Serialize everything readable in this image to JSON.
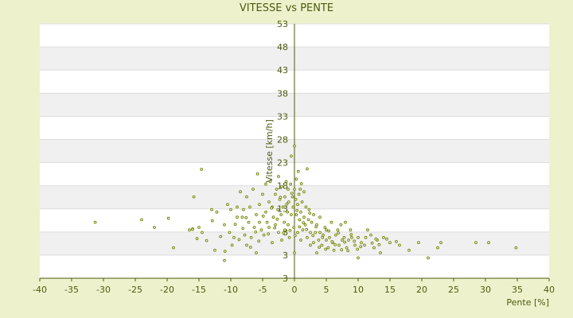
{
  "chart_data": {
    "type": "scatter",
    "title": "VITESSE vs PENTE",
    "xlabel": "Pente [%]",
    "ylabel": "Vitesse [km/h]",
    "xlim": [
      -40,
      40
    ],
    "ylim": [
      3,
      53
    ],
    "x_ticks": [
      "-40",
      "-35",
      "-30",
      "-25",
      "-20",
      "-15",
      "-10",
      "-5",
      "0",
      "5",
      "10",
      "15",
      "20",
      "25",
      "30",
      "35",
      "40"
    ],
    "y_ticks": [
      "3",
      "3",
      "8",
      "13",
      "18",
      "23",
      "28",
      "33",
      "38",
      "43",
      "48",
      "53"
    ],
    "grid": true,
    "marker_color": "#7a8a10",
    "points": [
      [
        -31.3,
        14.0
      ],
      [
        -24.0,
        14.5
      ],
      [
        -22.0,
        13.0
      ],
      [
        -19.8,
        14.8
      ],
      [
        -19.0,
        9.0
      ],
      [
        -16.5,
        12.5
      ],
      [
        -16.0,
        12.7
      ],
      [
        -15.8,
        19.0
      ],
      [
        -15.3,
        10.8
      ],
      [
        -15.0,
        13.0
      ],
      [
        -14.6,
        24.4
      ],
      [
        -14.5,
        12.0
      ],
      [
        -13.0,
        16.5
      ],
      [
        -12.5,
        8.5
      ],
      [
        -12.2,
        16.0
      ],
      [
        -11.0,
        6.5
      ],
      [
        -11.0,
        13.5
      ],
      [
        -10.5,
        17.5
      ],
      [
        -10.2,
        12.0
      ],
      [
        -10.0,
        16.5
      ],
      [
        -9.8,
        9.5
      ],
      [
        -9.5,
        11.0
      ],
      [
        -9.0,
        15.0
      ],
      [
        -9.0,
        17.0
      ],
      [
        -8.5,
        20.0
      ],
      [
        -8.2,
        15.0
      ],
      [
        -8.0,
        16.5
      ],
      [
        -7.8,
        11.5
      ],
      [
        -7.5,
        9.5
      ],
      [
        -7.5,
        19.0
      ],
      [
        -7.2,
        14.0
      ],
      [
        -7.0,
        17.0
      ],
      [
        -6.8,
        11.0
      ],
      [
        -6.5,
        20.5
      ],
      [
        -6.3,
        13.0
      ],
      [
        -6.0,
        8.0
      ],
      [
        -6.0,
        15.5
      ],
      [
        -5.8,
        23.5
      ],
      [
        -5.5,
        14.0
      ],
      [
        -5.5,
        17.5
      ],
      [
        -5.2,
        12.5
      ],
      [
        -5.0,
        19.5
      ],
      [
        -4.8,
        11.5
      ],
      [
        -4.5,
        16.0
      ],
      [
        -4.5,
        21.5
      ],
      [
        -4.3,
        14.0
      ],
      [
        -4.0,
        18.0
      ],
      [
        -4.0,
        13.0
      ],
      [
        -3.8,
        22.0
      ],
      [
        -3.5,
        17.0
      ],
      [
        -3.5,
        10.0
      ],
      [
        -3.3,
        15.0
      ],
      [
        -3.0,
        19.5
      ],
      [
        -3.0,
        13.5
      ],
      [
        -2.8,
        20.5
      ],
      [
        -2.6,
        16.5
      ],
      [
        -2.5,
        23.0
      ],
      [
        -2.5,
        12.0
      ],
      [
        -2.3,
        18.5
      ],
      [
        -2.1,
        15.5
      ],
      [
        -2.0,
        21.0
      ],
      [
        -2.0,
        10.5
      ],
      [
        -1.8,
        17.0
      ],
      [
        -1.6,
        14.0
      ],
      [
        -1.5,
        19.0
      ],
      [
        -1.5,
        12.5
      ],
      [
        -1.3,
        22.0
      ],
      [
        -1.1,
        16.0
      ],
      [
        -1.0,
        20.5
      ],
      [
        -1.0,
        13.5
      ],
      [
        -0.9,
        18.0
      ],
      [
        -0.8,
        11.0
      ],
      [
        -0.6,
        21.5
      ],
      [
        -0.5,
        15.5
      ],
      [
        -0.5,
        27.0
      ],
      [
        -0.3,
        19.0
      ],
      [
        -0.2,
        17.0
      ],
      [
        -0.1,
        13.0
      ],
      [
        0.0,
        20.5
      ],
      [
        0.0,
        29.0
      ],
      [
        0.0,
        8.0
      ],
      [
        0.2,
        18.5
      ],
      [
        0.3,
        22.5
      ],
      [
        0.3,
        15.5
      ],
      [
        0.5,
        17.5
      ],
      [
        0.5,
        12.0
      ],
      [
        0.6,
        24.0
      ],
      [
        0.7,
        19.5
      ],
      [
        0.8,
        14.5
      ],
      [
        0.9,
        20.5
      ],
      [
        1.0,
        16.0
      ],
      [
        1.0,
        10.5
      ],
      [
        1.2,
        18.0
      ],
      [
        1.3,
        12.5
      ],
      [
        1.5,
        15.0
      ],
      [
        1.5,
        20.0
      ],
      [
        1.7,
        13.5
      ],
      [
        1.8,
        17.0
      ],
      [
        2.0,
        24.5
      ],
      [
        2.0,
        11.0
      ],
      [
        2.2,
        14.5
      ],
      [
        2.3,
        16.5
      ],
      [
        2.5,
        9.5
      ],
      [
        2.5,
        12.0
      ],
      [
        2.7,
        14.0
      ],
      [
        3.0,
        10.0
      ],
      [
        3.0,
        15.5
      ],
      [
        3.3,
        12.0
      ],
      [
        3.5,
        8.0
      ],
      [
        3.5,
        13.5
      ],
      [
        3.8,
        10.5
      ],
      [
        4.0,
        12.0
      ],
      [
        4.0,
        15.0
      ],
      [
        4.3,
        9.5
      ],
      [
        4.5,
        11.5
      ],
      [
        4.8,
        13.0
      ],
      [
        5.0,
        10.5
      ],
      [
        5.0,
        12.5
      ],
      [
        5.3,
        9.0
      ],
      [
        5.5,
        11.0
      ],
      [
        5.8,
        14.0
      ],
      [
        6.0,
        10.0
      ],
      [
        6.2,
        8.5
      ],
      [
        6.5,
        11.5
      ],
      [
        6.8,
        12.5
      ],
      [
        7.0,
        9.5
      ],
      [
        7.3,
        13.5
      ],
      [
        7.5,
        10.5
      ],
      [
        7.8,
        11.0
      ],
      [
        8.0,
        14.0
      ],
      [
        8.2,
        9.0
      ],
      [
        8.5,
        10.5
      ],
      [
        8.8,
        12.5
      ],
      [
        9.0,
        11.0
      ],
      [
        9.5,
        9.5
      ],
      [
        10.0,
        7.0
      ],
      [
        10.0,
        11.0
      ],
      [
        10.5,
        10.0
      ],
      [
        11.0,
        9.5
      ],
      [
        11.5,
        12.5
      ],
      [
        12.0,
        11.5
      ],
      [
        12.5,
        9.0
      ],
      [
        13.0,
        10.5
      ],
      [
        13.5,
        8.0
      ],
      [
        14.0,
        11.0
      ],
      [
        15.0,
        10.0
      ],
      [
        16.5,
        9.5
      ],
      [
        18.0,
        8.5
      ],
      [
        19.5,
        10.0
      ],
      [
        21.0,
        7.0
      ],
      [
        22.5,
        9.0
      ],
      [
        23.0,
        10.0
      ],
      [
        28.5,
        10.0
      ],
      [
        30.5,
        10.0
      ],
      [
        34.8,
        9.0
      ],
      [
        -16.0,
        12.6
      ],
      [
        -13.8,
        10.4
      ],
      [
        -12.9,
        14.3
      ],
      [
        -11.6,
        11.2
      ],
      [
        -10.9,
        8.3
      ],
      [
        -9.3,
        13.6
      ],
      [
        -8.7,
        10.6
      ],
      [
        -8.1,
        12.8
      ],
      [
        -7.6,
        14.9
      ],
      [
        -6.9,
        9.1
      ],
      [
        -6.1,
        12.1
      ],
      [
        -5.6,
        10.3
      ],
      [
        -4.9,
        15.2
      ],
      [
        -4.1,
        11.7
      ],
      [
        -3.6,
        16.8
      ],
      [
        -3.1,
        12.9
      ],
      [
        -2.7,
        14.6
      ],
      [
        -2.2,
        18.9
      ],
      [
        -1.7,
        11.9
      ],
      [
        -1.2,
        17.6
      ],
      [
        -0.7,
        12.4
      ],
      [
        -0.4,
        19.7
      ],
      [
        0.1,
        11.4
      ],
      [
        0.4,
        16.3
      ],
      [
        0.8,
        13.1
      ],
      [
        1.1,
        21.6
      ],
      [
        1.4,
        13.9
      ],
      [
        1.9,
        12.6
      ],
      [
        2.4,
        15.8
      ],
      [
        2.9,
        11.4
      ],
      [
        3.4,
        13.1
      ],
      [
        3.9,
        9.1
      ],
      [
        4.4,
        11.0
      ],
      [
        4.9,
        8.7
      ],
      [
        5.4,
        12.3
      ],
      [
        5.9,
        10.2
      ],
      [
        6.4,
        9.6
      ],
      [
        6.9,
        11.9
      ],
      [
        7.4,
        8.6
      ],
      [
        7.9,
        10.1
      ],
      [
        8.4,
        8.4
      ],
      [
        8.9,
        11.6
      ],
      [
        9.4,
        10.3
      ],
      [
        9.9,
        8.7
      ],
      [
        10.4,
        9.2
      ],
      [
        11.2,
        11.0
      ],
      [
        12.2,
        9.9
      ],
      [
        12.8,
        10.7
      ],
      [
        13.3,
        9.6
      ],
      [
        14.5,
        10.7
      ],
      [
        16.0,
        10.2
      ]
    ]
  }
}
